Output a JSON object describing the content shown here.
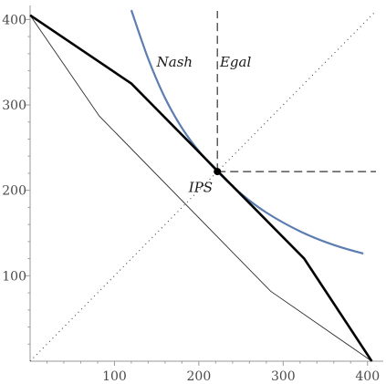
{
  "chart_data": {
    "type": "line",
    "title": "",
    "xlabel": "",
    "ylabel": "",
    "xlim": [
      0,
      410
    ],
    "ylim": [
      0,
      410
    ],
    "xticks": [
      100,
      200,
      300,
      400
    ],
    "yticks": [
      100,
      200,
      300,
      400
    ],
    "grid": false,
    "legend": "none",
    "colors": {
      "thick": "#000000",
      "thin": "#2b2b2b",
      "curve": "#5b7db1",
      "guide": "#333333"
    },
    "series": [
      {
        "values": [
          [
            0,
            405
          ],
          [
            120,
            325
          ],
          [
            325,
            120
          ],
          [
            405,
            0
          ]
        ]
      },
      {
        "values": [
          [
            0,
            405
          ],
          [
            82,
            287
          ],
          [
            285,
            82
          ],
          [
            405,
            0
          ]
        ]
      },
      {
        "values": [
          [
            120,
            411
          ],
          [
            140,
            354
          ],
          [
            160,
            308
          ],
          [
            180,
            273
          ],
          [
            200,
            246
          ],
          [
            222,
            222
          ],
          [
            250,
            196
          ],
          [
            280,
            174
          ],
          [
            320,
            152
          ],
          [
            360,
            136
          ],
          [
            395,
            126
          ]
        ]
      },
      {
        "values": [
          [
            222,
            0
          ],
          [
            222,
            222
          ]
        ]
      },
      {
        "values": [
          [
            0,
            0
          ],
          [
            410,
            410
          ]
        ]
      },
      {
        "values": [
          [
            222,
            222
          ],
          [
            410,
            222
          ]
        ]
      },
      {
        "values": [
          [
            222,
            222
          ],
          [
            222,
            410
          ]
        ]
      }
    ],
    "point": {
      "x": 222,
      "y": 222,
      "label": "IPS"
    },
    "annotations": [
      {
        "text": "Nash",
        "x": 150,
        "y": 345
      },
      {
        "text": "Egal",
        "x": 225,
        "y": 345
      },
      {
        "text": "IPS",
        "x": 188,
        "y": 198
      }
    ]
  }
}
